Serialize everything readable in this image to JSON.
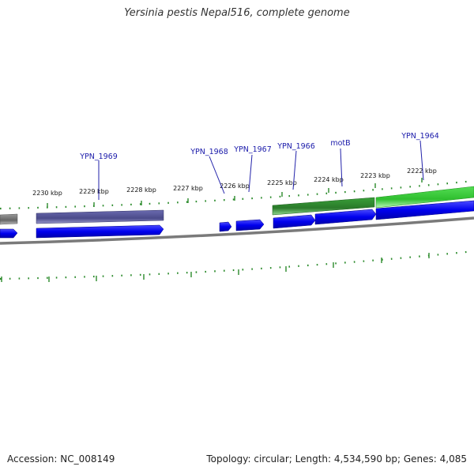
{
  "title": "Yersinia pestis Nepal516, complete genome",
  "accession_text": "Accession: NC_008149",
  "summary_text": "Topology: circular; Length: 4,534,590 bp; Genes: 4,085",
  "scale_labels": [
    {
      "kbp": 2230,
      "text": "2230 kbp"
    },
    {
      "kbp": 2229,
      "text": "2229 kbp"
    },
    {
      "kbp": 2228,
      "text": "2228 kbp"
    },
    {
      "kbp": 2227,
      "text": "2227 kbp"
    },
    {
      "kbp": 2226,
      "text": "2226 kbp"
    },
    {
      "kbp": 2225,
      "text": "2225 kbp"
    },
    {
      "kbp": 2224,
      "text": "2224 kbp"
    },
    {
      "kbp": 2223,
      "text": "2223 kbp"
    },
    {
      "kbp": 2222,
      "text": "2222 kbp"
    }
  ],
  "gene_labels": [
    {
      "name": "YPN_1969",
      "text": "YPN_1969"
    },
    {
      "name": "YPN_1968",
      "text": "YPN_1968"
    },
    {
      "name": "YPN_1967",
      "text": "YPN_1967"
    },
    {
      "name": "YPN_1966",
      "text": "YPN_1966"
    },
    {
      "name": "motB",
      "text": "motB"
    },
    {
      "name": "YPN_1964",
      "text": "YPN_1964"
    }
  ],
  "colors": {
    "cds": "#0000ee",
    "feature_purple": "#4b4b8a",
    "feature_green_dark": "#2e8b2e",
    "feature_green_light": "#33cc33",
    "feature_gray": "#777777",
    "backbone": "#888888",
    "ticks": "#2a8a2a",
    "label_line": "#2222aa"
  }
}
